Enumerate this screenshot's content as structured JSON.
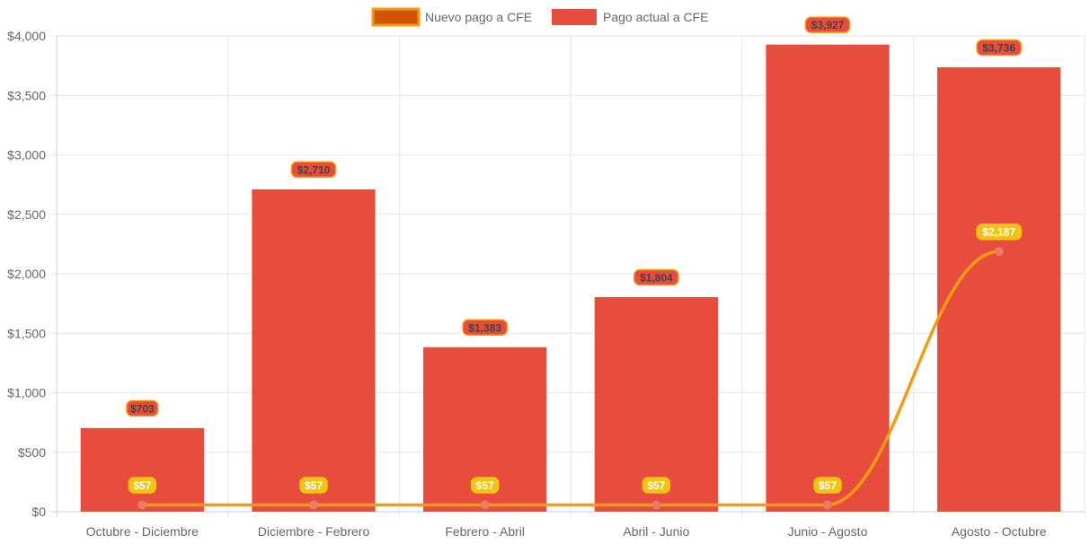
{
  "chart_data": {
    "type": "bar",
    "title": "",
    "xlabel": "",
    "ylabel": "",
    "ylim": [
      0,
      4000
    ],
    "y_ticks": [
      {
        "value": 0,
        "label": "$0"
      },
      {
        "value": 500,
        "label": "$500"
      },
      {
        "value": 1000,
        "label": "$1,000"
      },
      {
        "value": 1500,
        "label": "$1,500"
      },
      {
        "value": 2000,
        "label": "$2,000"
      },
      {
        "value": 2500,
        "label": "$2,500"
      },
      {
        "value": 3000,
        "label": "$3,000"
      },
      {
        "value": 3500,
        "label": "$3,500"
      },
      {
        "value": 4000,
        "label": "$4,000"
      }
    ],
    "categories": [
      "Octubre - Diciembre",
      "Diciembre - Febrero",
      "Febrero - Abril",
      "Abril - Junio",
      "Junio - Agosto",
      "Agosto - Octubre"
    ],
    "legend_position": "top",
    "series": [
      {
        "name": "Nuevo pago a CFE",
        "type": "line",
        "color": "#f39c12",
        "point_color": "#e67e63",
        "legend_fill": "#d35400",
        "label_bg": "#f1c40f",
        "values": [
          57,
          57,
          57,
          57,
          57,
          2187
        ],
        "labels": [
          "$57",
          "$57",
          "$57",
          "$57",
          "$57",
          "$2,187"
        ]
      },
      {
        "name": "Pago actual a CFE",
        "type": "bar",
        "color": "#e74c3c",
        "label_border": "#f39c12",
        "values": [
          703,
          2710,
          1383,
          1804,
          3927,
          3736
        ],
        "labels": [
          "$703",
          "$2,710",
          "$1,383",
          "$1,804",
          "$3,927",
          "$3,736"
        ]
      }
    ]
  }
}
